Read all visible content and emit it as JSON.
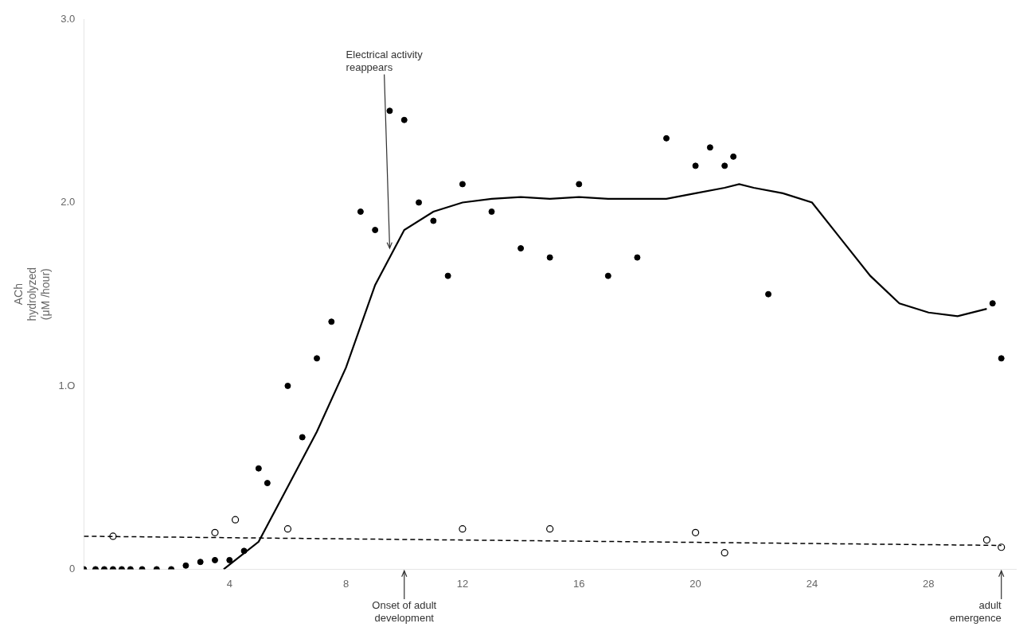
{
  "chart_data": {
    "type": "scatter",
    "ylabel": "ACh\nhydrolyzed\n(μM /hour)",
    "xlim": [
      -1,
      31
    ],
    "ylim": [
      0,
      3.0
    ],
    "xticks": [
      4,
      8,
      12,
      16,
      20,
      24,
      28
    ],
    "yticks": [
      0,
      {
        "value": 1.0,
        "label": "1.O"
      },
      {
        "value": 2.0,
        "label": "2.0"
      },
      {
        "value": 3.0,
        "label": "3.0"
      }
    ],
    "grid": false,
    "series": [
      {
        "type": "line",
        "line_style": "solid",
        "color": "#000000",
        "x": [
          3.8,
          5.0,
          6.0,
          7.0,
          8.0,
          9.0,
          10.0,
          11.0,
          12.0,
          13.0,
          14.0,
          15.0,
          16.0,
          17.0,
          18.0,
          19.0,
          20.0,
          21.0,
          21.5,
          22.0,
          23.0,
          24.0,
          25.0,
          26.0,
          27.0,
          28.0,
          29.0,
          30.0
        ],
        "values": [
          0.0,
          0.15,
          0.45,
          0.75,
          1.1,
          1.55,
          1.85,
          1.95,
          2.0,
          2.02,
          2.03,
          2.02,
          2.03,
          2.02,
          2.02,
          2.02,
          2.05,
          2.08,
          2.1,
          2.08,
          2.05,
          2.0,
          1.8,
          1.6,
          1.45,
          1.4,
          1.38,
          1.42
        ]
      },
      {
        "type": "line",
        "line_style": "dashed",
        "color": "#000000",
        "x": [
          -1.0,
          30.5
        ],
        "values": [
          0.18,
          0.13
        ]
      },
      {
        "type": "scatter",
        "marker": "filled",
        "color": "#000000",
        "x": [
          -1.0,
          -0.6,
          -0.3,
          0.0,
          0.3,
          0.6,
          1.0,
          1.5,
          2.0,
          2.5,
          3.0,
          3.5,
          4.0,
          4.5,
          5.0,
          5.3,
          6.0,
          6.5,
          7.0,
          7.5,
          8.5,
          9.0,
          9.5,
          10.0,
          10.5,
          11.0,
          11.5,
          12.0,
          13.0,
          14.0,
          15.0,
          16.0,
          17.0,
          18.0,
          19.0,
          20.0,
          20.5,
          21.0,
          21.3,
          22.5,
          30.2,
          30.5
        ],
        "values": [
          0.0,
          0.0,
          0.0,
          0.0,
          0.0,
          0.0,
          0.0,
          0.0,
          0.0,
          0.02,
          0.04,
          0.05,
          0.05,
          0.1,
          0.55,
          0.47,
          1.0,
          0.72,
          1.15,
          1.35,
          1.95,
          1.85,
          2.5,
          2.45,
          2.0,
          1.9,
          1.6,
          2.1,
          1.95,
          1.75,
          1.7,
          2.1,
          1.6,
          1.7,
          2.35,
          2.2,
          2.3,
          2.2,
          2.25,
          1.5,
          1.45,
          1.15
        ]
      },
      {
        "type": "scatter",
        "marker": "open",
        "color": "#000000",
        "x": [
          0.0,
          3.5,
          4.2,
          6.0,
          12.0,
          15.0,
          20.0,
          21.0,
          30.0,
          30.5
        ],
        "values": [
          0.18,
          0.2,
          0.27,
          0.22,
          0.22,
          0.22,
          0.2,
          0.09,
          0.16,
          0.12
        ]
      }
    ],
    "annotations": [
      {
        "text": "Electrical activity\nreappears",
        "x": 9.5,
        "y": 1.75,
        "text_x": 8.0,
        "text_y": 2.72
      },
      {
        "text": "Onset of adult\ndevelopment",
        "x": 10.0
      },
      {
        "text": "adult\nemergence",
        "x": 30.5
      }
    ]
  }
}
